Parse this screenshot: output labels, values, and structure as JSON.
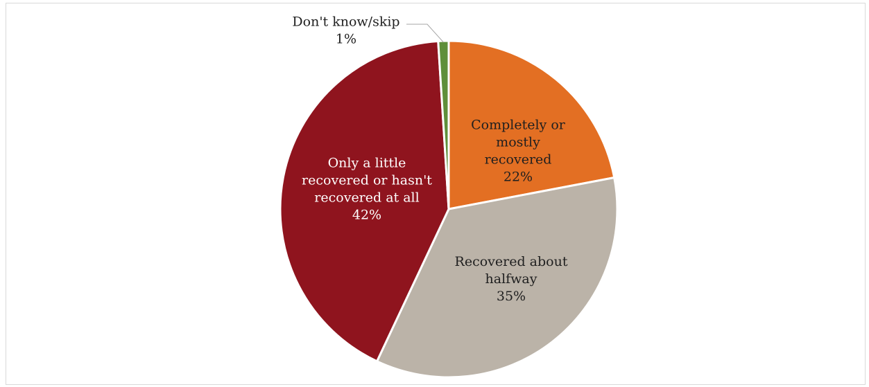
{
  "chart_data": {
    "type": "pie",
    "title": "",
    "slices": [
      {
        "label": [
          "Completely or",
          "mostly",
          "recovered"
        ],
        "value_label": "22%",
        "value": 22,
        "color": "#e36f23"
      },
      {
        "label": [
          "Recovered about",
          "halfway"
        ],
        "value_label": "35%",
        "value": 35,
        "color": "#bbb3a8"
      },
      {
        "label": [
          "Only a little",
          "recovered or hasn't",
          "recovered at all"
        ],
        "value_label": "42%",
        "value": 42,
        "color": "#8f141e"
      },
      {
        "label": [
          "Don't know/skip"
        ],
        "value_label": "1%",
        "value": 1,
        "color": "#5f8f3a"
      }
    ]
  }
}
